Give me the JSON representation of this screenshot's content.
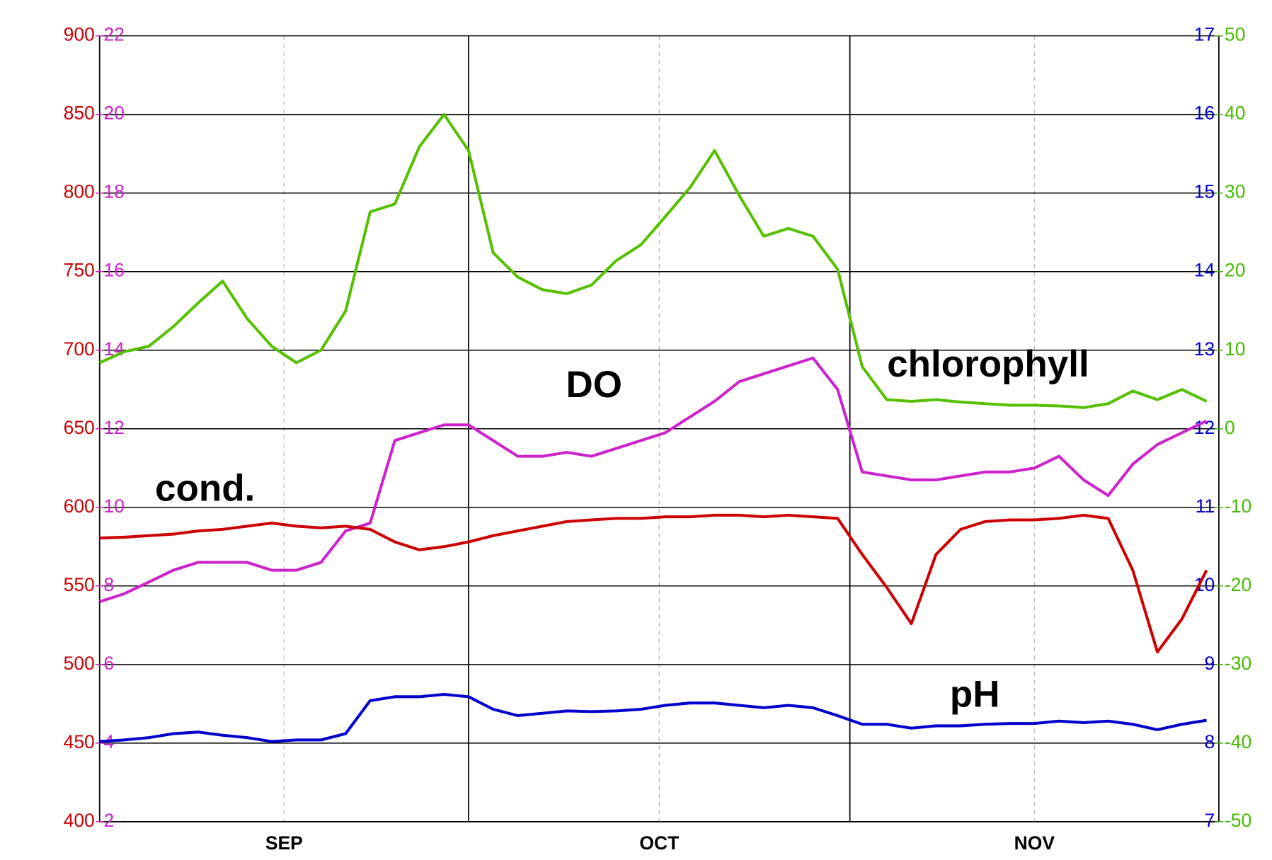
{
  "chart_data": {
    "type": "line",
    "x": [
      0,
      2,
      4,
      6,
      8,
      10,
      12,
      14,
      16,
      18,
      20,
      22,
      24,
      26,
      28,
      30,
      32,
      34,
      36,
      38,
      40,
      42,
      44,
      46,
      48,
      50,
      52,
      54,
      56,
      58,
      60,
      62,
      64,
      66,
      68,
      70,
      72,
      74,
      76,
      78,
      80,
      82,
      84,
      86,
      88,
      90
    ],
    "xlim": [
      0,
      91
    ],
    "xticks": [
      {
        "value": 15,
        "label": "SEP"
      },
      {
        "value": 45.5,
        "label": "OCT"
      },
      {
        "value": 76,
        "label": "NOV"
      }
    ],
    "xbounds": [
      30,
      61
    ],
    "ylim": [
      400,
      900
    ],
    "yticks": [
      400,
      450,
      500,
      550,
      600,
      650,
      700,
      750,
      800,
      850,
      900
    ],
    "ylim_do": [
      2,
      22
    ],
    "yticks_do": [
      2,
      4,
      6,
      8,
      10,
      12,
      14,
      16,
      18,
      20,
      22
    ],
    "y2lim": [
      7,
      17
    ],
    "y2ticks": [
      7,
      8,
      9,
      10,
      11,
      12,
      13,
      14,
      15,
      16,
      17
    ],
    "y2lim_chl": [
      -50,
      50
    ],
    "y2ticks_chl": [
      -50,
      -40,
      -30,
      -20,
      -10,
      0,
      10,
      20,
      30,
      40,
      50
    ],
    "axis_colors": {
      "y": "#cc0000",
      "y_do": "#cc22cc",
      "y2": "#0000cc",
      "y2_chl": "#44bb00"
    },
    "grid": true,
    "series": [
      {
        "name": "chlorophyll",
        "color": "#55c000",
        "axis": "y2_chl",
        "values": [
          8.4,
          9.8,
          10.5,
          13,
          16,
          18.8,
          14,
          10.5,
          8.4,
          10,
          15,
          27.6,
          28.6,
          35.9,
          40,
          35.4,
          22.4,
          19.3,
          17.7,
          17.2,
          18.3,
          21.4,
          23.4,
          27,
          30.7,
          35.4,
          29.7,
          24.5,
          25.5,
          24.5,
          20.3,
          7.9,
          3.7,
          3.5,
          3.7,
          3.4,
          3.2,
          3,
          3,
          2.9,
          2.7,
          3.2,
          4.8,
          3.7,
          5,
          3.5
        ]
      },
      {
        "name": "DO",
        "color": "#cc22cc",
        "axis": "y_do",
        "values": [
          7.6,
          7.8,
          8.1,
          8.4,
          8.6,
          8.6,
          8.6,
          8.4,
          8.4,
          8.6,
          9.4,
          9.6,
          11.7,
          11.9,
          12.1,
          12.1,
          11.7,
          11.3,
          11.3,
          11.4,
          11.3,
          11.5,
          11.7,
          11.9,
          12.3,
          12.7,
          13.2,
          13.4,
          13.6,
          13.8,
          13,
          10.9,
          10.8,
          10.7,
          10.7,
          10.8,
          10.9,
          10.9,
          11,
          11.3,
          10.7,
          10.3,
          11.1,
          11.6,
          11.9,
          12.2
        ]
      },
      {
        "name": "cond.",
        "color": "#cc0000",
        "axis": "y",
        "values": [
          580.5,
          581,
          582,
          583,
          585,
          586,
          588,
          590,
          588,
          587,
          588,
          586,
          578,
          573,
          575,
          578,
          582,
          585,
          588,
          591,
          592,
          593,
          593,
          594,
          594,
          595,
          595,
          594,
          595,
          594,
          593,
          570,
          549,
          526,
          570,
          586,
          591,
          592,
          592,
          593,
          595,
          593,
          560,
          508,
          529,
          560
        ]
      },
      {
        "name": "pH",
        "color": "#0000cc",
        "axis": "y2",
        "values": [
          8.02,
          8.04,
          8.07,
          8.12,
          8.14,
          8.1,
          8.07,
          8.02,
          8.04,
          8.04,
          8.12,
          8.54,
          8.59,
          8.59,
          8.62,
          8.59,
          8.43,
          8.35,
          8.38,
          8.41,
          8.4,
          8.41,
          8.43,
          8.48,
          8.51,
          8.51,
          8.48,
          8.45,
          8.48,
          8.45,
          8.35,
          8.24,
          8.24,
          8.19,
          8.22,
          8.22,
          8.24,
          8.25,
          8.25,
          8.28,
          8.26,
          8.28,
          8.24,
          8.17,
          8.24,
          8.29
        ]
      }
    ]
  }
}
